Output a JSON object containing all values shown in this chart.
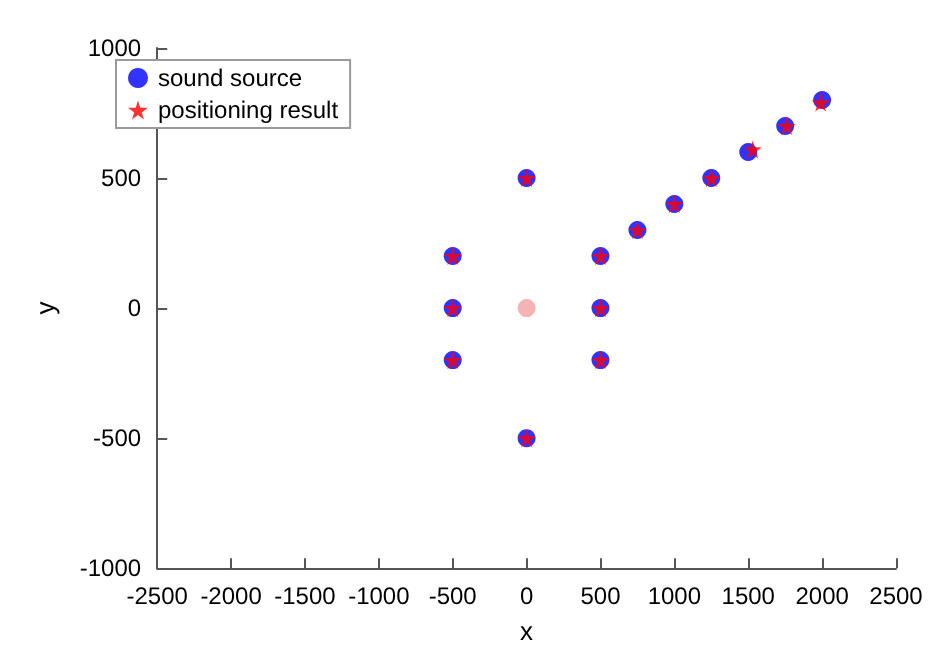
{
  "chart_data": {
    "type": "scatter",
    "xlabel": "x",
    "ylabel": "y",
    "xlim": [
      -2500,
      2500
    ],
    "xticks": [
      -2500,
      -2000,
      -1500,
      -1000,
      -500,
      0,
      500,
      1000,
      1500,
      2000,
      2500
    ],
    "ylim": [
      -1000,
      1000
    ],
    "yticks": [
      -1000,
      -500,
      0,
      500,
      1000
    ],
    "grid": false,
    "legend": "top left",
    "series": [
      {
        "name": "sound source",
        "color": "#0000ff",
        "marker": "circle",
        "x": [
          -500,
          -500,
          -500,
          0,
          0,
          500,
          500,
          500,
          750,
          1000,
          1250,
          1500,
          1750,
          2000
        ],
        "values": [
          200,
          0,
          -200,
          500,
          -500,
          200,
          0,
          -200,
          300,
          400,
          500,
          600,
          700,
          800
        ]
      },
      {
        "name": "positioning result",
        "color": "#ff0000",
        "marker": "star",
        "x": [
          -500,
          -500,
          -500,
          0,
          0,
          500,
          500,
          500,
          750,
          1000,
          1250,
          1530,
          1760,
          1990
        ],
        "values": [
          200,
          0,
          -200,
          500,
          -500,
          200,
          0,
          -200,
          300,
          400,
          500,
          610,
          700,
          790
        ]
      },
      {
        "color": "#f4a0a0",
        "marker": "circle",
        "x": [
          0
        ],
        "values": [
          0
        ]
      }
    ]
  }
}
